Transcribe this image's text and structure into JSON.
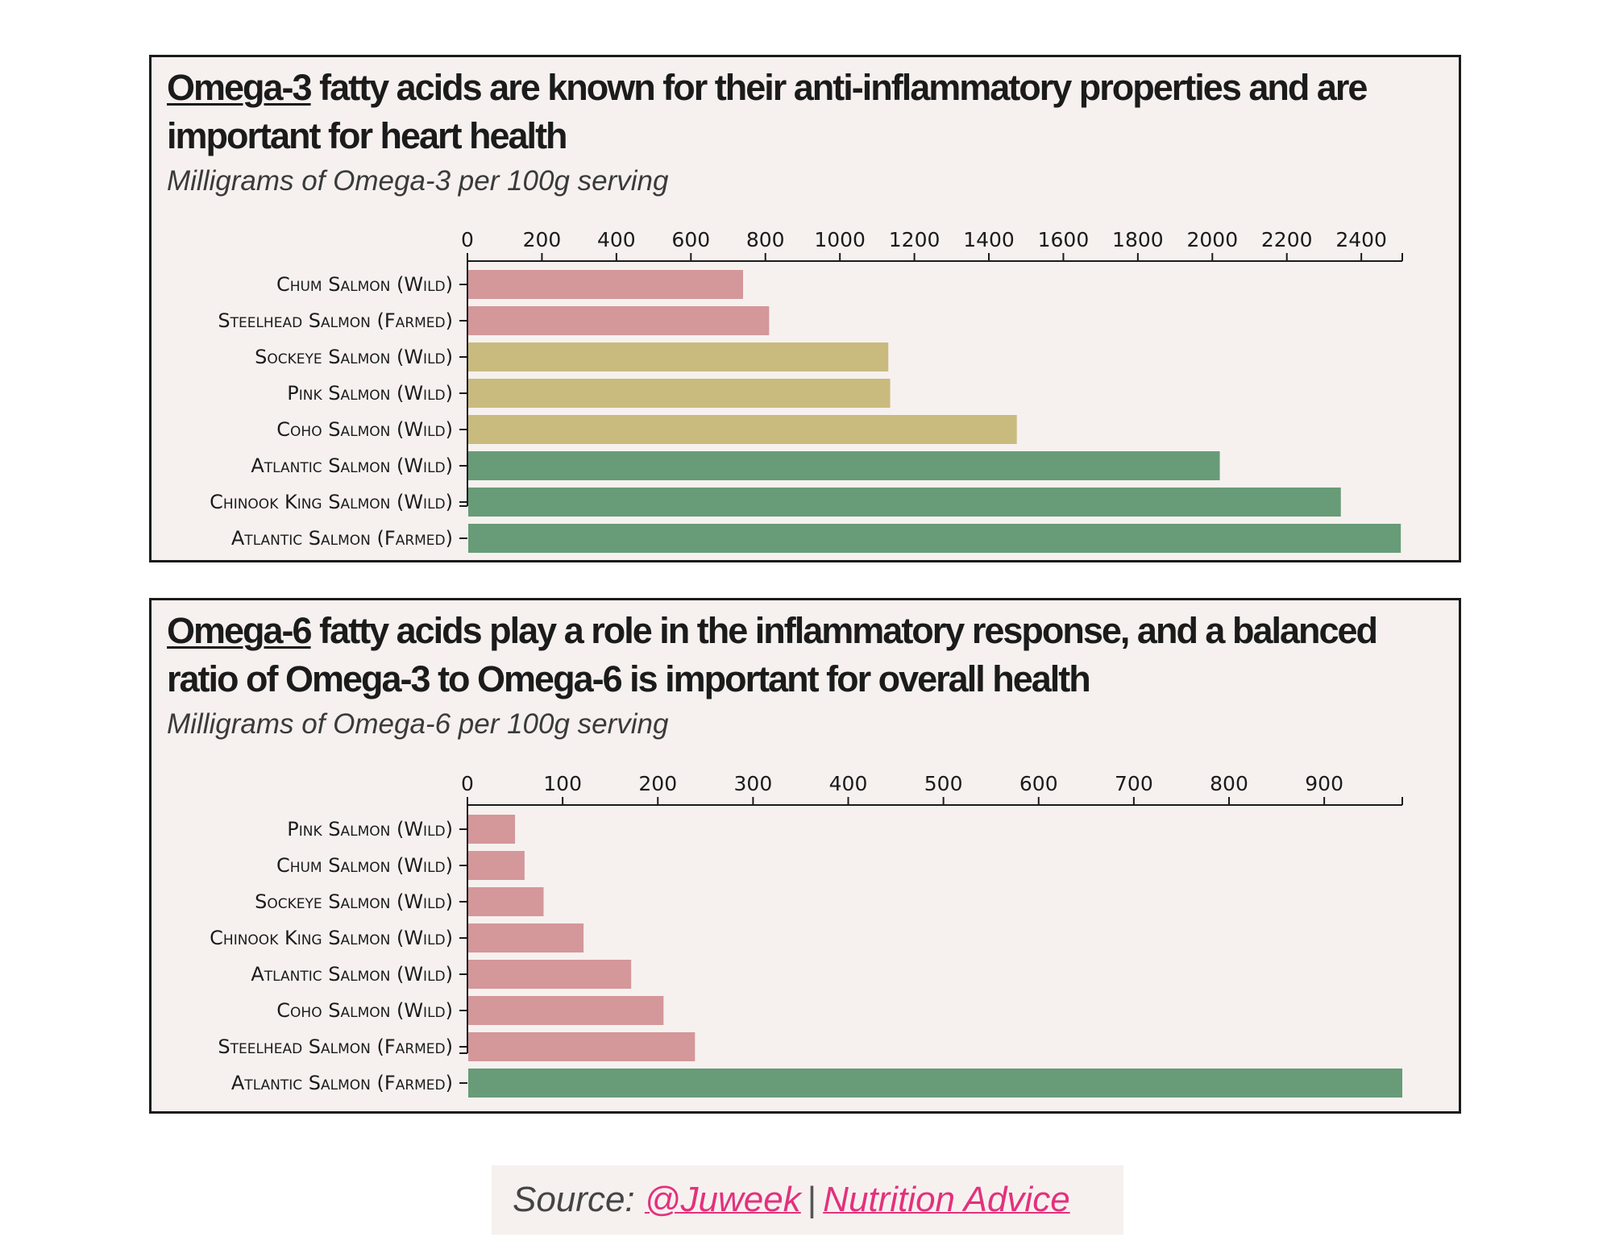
{
  "colors": {
    "pink": "#d4979a",
    "khaki": "#c9bb7e",
    "green": "#689b77",
    "link": "#e3317d"
  },
  "panels": [
    {
      "title_highlight": "Omega-3",
      "title_rest": " fatty acids are known for their anti-inflammatory properties and are important for heart health",
      "subtitle": "Milligrams of Omega-3 per 100g serving"
    },
    {
      "title_highlight": "Omega-6",
      "title_rest": " fatty acids play a role in the inflammatory response, and a balanced ratio of Omega-3 to Omega-6 is important for overall health",
      "subtitle": "Milligrams of Omega-6 per 100g serving"
    }
  ],
  "chart_data": [
    {
      "type": "bar",
      "orientation": "horizontal",
      "title": "Omega-3 fatty acids are known for their anti-inflammatory properties and are important for heart health",
      "subtitle": "Milligrams of Omega-3 per 100g serving",
      "xlim": [
        0,
        2510
      ],
      "ticks": [
        0,
        200,
        400,
        600,
        800,
        1000,
        1200,
        1400,
        1600,
        1800,
        2000,
        2200,
        2400
      ],
      "categories": [
        "Chum Salmon (Wild)",
        "Steelhead Salmon (Farmed)",
        "Sockeye Salmon (Wild)",
        "Pink Salmon (Wild)",
        "Coho Salmon (Wild)",
        "Atlantic Salmon (Wild)",
        "Chinook King Salmon (Wild)",
        "Atlantic Salmon (Farmed)"
      ],
      "values": [
        740,
        810,
        1130,
        1135,
        1475,
        2020,
        2345,
        2506
      ],
      "bar_colors": [
        "pink",
        "pink",
        "khaki",
        "khaki",
        "khaki",
        "green",
        "green",
        "green"
      ]
    },
    {
      "type": "bar",
      "orientation": "horizontal",
      "title": "Omega-6 fatty acids play a role in the inflammatory response, and a balanced ratio of Omega-3 to Omega-6 is important for overall health",
      "subtitle": "Milligrams of Omega-6 per 100g serving",
      "xlim": [
        0,
        982
      ],
      "ticks": [
        0,
        100,
        200,
        300,
        400,
        500,
        600,
        700,
        800,
        900
      ],
      "categories": [
        "Pink Salmon (Wild)",
        "Chum Salmon (Wild)",
        "Sockeye Salmon (Wild)",
        "Chinook King Salmon (Wild)",
        "Atlantic Salmon (Wild)",
        "Coho Salmon (Wild)",
        "Steelhead Salmon (Farmed)",
        "Atlantic Salmon (Farmed)"
      ],
      "values": [
        50,
        60,
        80,
        122,
        172,
        206,
        239,
        982
      ],
      "bar_colors": [
        "pink",
        "pink",
        "pink",
        "pink",
        "pink",
        "pink",
        "pink",
        "green"
      ]
    }
  ],
  "source": {
    "prefix": "Source:",
    "author": "@Juweek",
    "separator": "|",
    "link": "Nutrition Advice"
  }
}
